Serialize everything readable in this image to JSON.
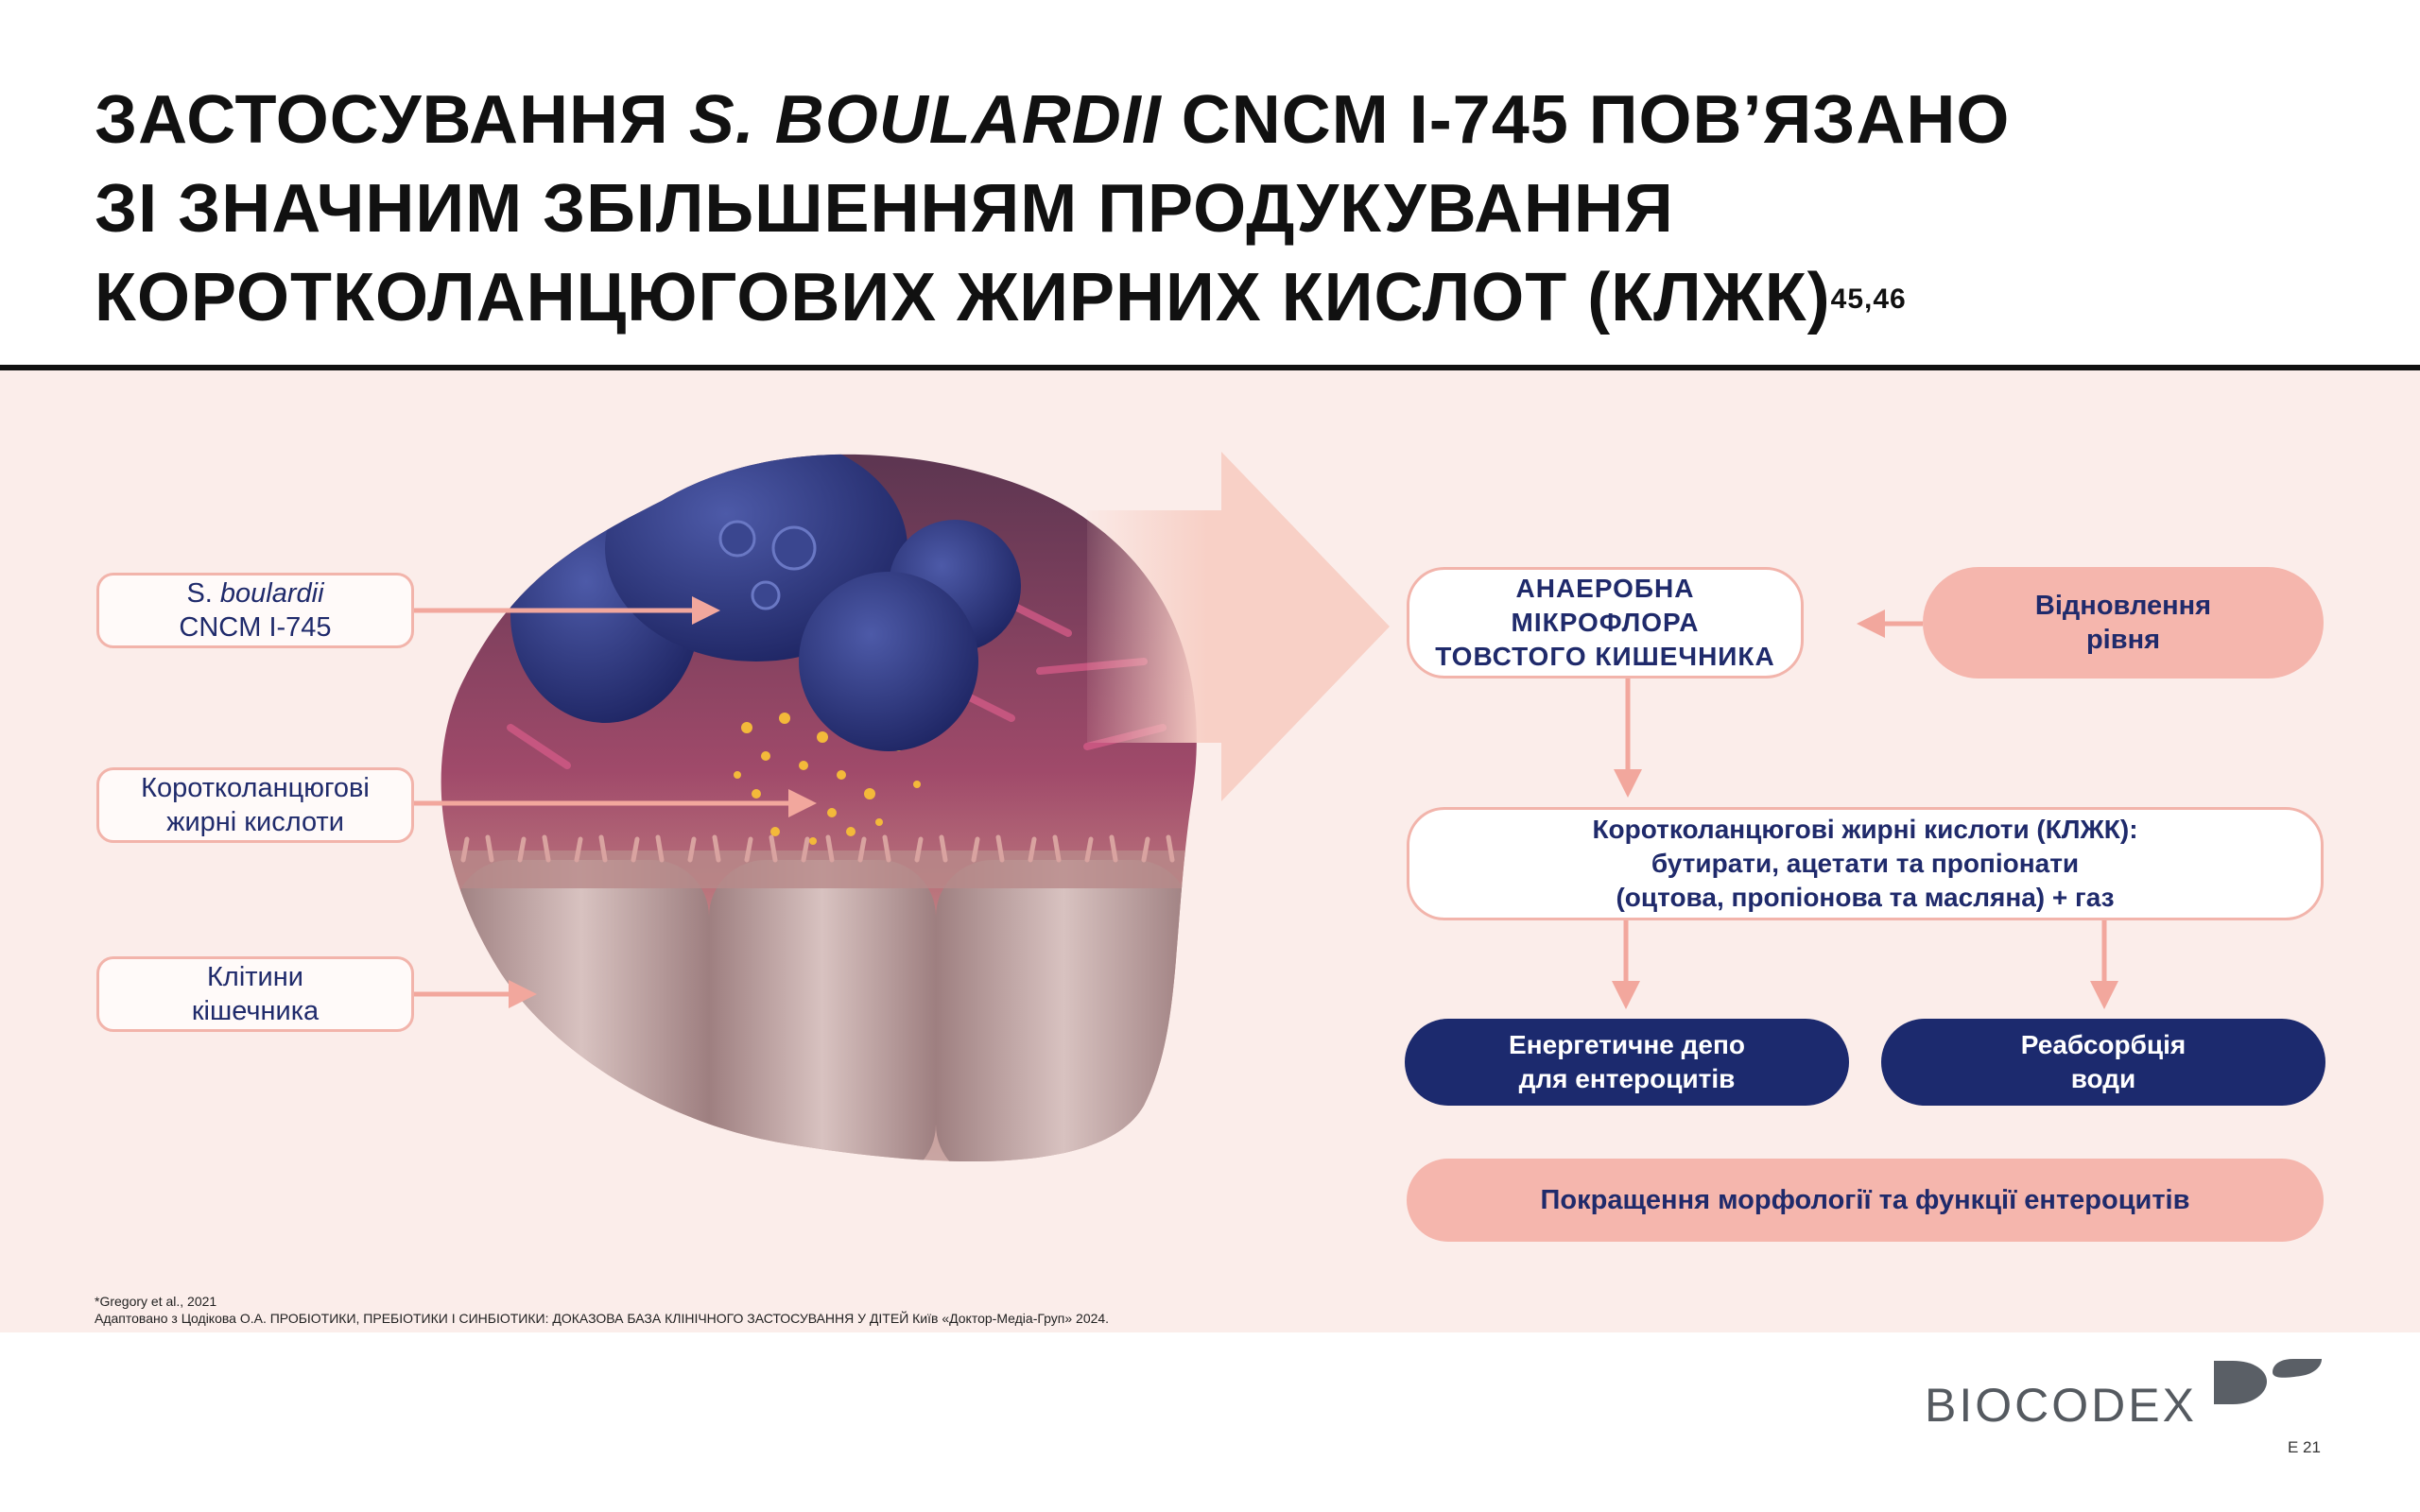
{
  "title": {
    "line1_pre": "ЗАСТОСУВАННЯ ",
    "line1_italic": "S. BOULARDII",
    "line1_post": " CNCM I-745 ПОВ’ЯЗАНО",
    "line2": "ЗІ ЗНАЧНИМ ЗБІЛЬШЕННЯМ ПРОДУКУВАННЯ",
    "line3": "КОРОТКОЛАНЦЮГОВИХ ЖИРНИХ КИСЛОТ (КЛЖК)",
    "refs": "45,46"
  },
  "labels": {
    "sb_prefix": "S. ",
    "sb_italic": "boulardii",
    "sb_line2": "CNCM I-745",
    "scfa_line1": "Коротколанцюгові",
    "scfa_line2": "жирні кислоти",
    "cells_line1": "Клітини",
    "cells_line2": "кішечника"
  },
  "flow": {
    "anaerobic_line1": "АНАЕРОБНА",
    "anaerobic_line2": "МІКРОФЛОРА",
    "anaerobic_line3": "ТОВСТОГО КИШЕЧНИКА",
    "restore_line1": "Відновлення",
    "restore_line2": "рівня",
    "scfa_line1": "Коротколанцюгові жирні кислоти (КЛЖК):",
    "scfa_line2": "бутирати, ацетати та пропіонати",
    "scfa_line3": "(оцтова, пропіонова та масляна) + газ",
    "energy_line1": "Енергетичне депо",
    "energy_line2": "для ентероцитів",
    "water_line1": "Реабсорбція",
    "water_line2": "води",
    "improve": "Покращення морфології та функції ентероцитів"
  },
  "footnotes": {
    "line1": "*Gregory et al., 2021",
    "line2": "Адаптовано з Цодікова О.А. ПРОБІОТИКИ, ПРЕБІОТИКИ І СИНБІОТИКИ: ДОКАЗОВА БАЗА КЛІНІЧНОГО ЗАСТОСУВАННЯ У ДІТЕЙ Київ «Доктор-Медіа-Груп» 2024."
  },
  "brand": {
    "name": "BIOCODEX"
  },
  "page": "E 21",
  "colors": {
    "navy": "#1c2a6e",
    "pink": "#f5b6ad",
    "outline": "#f2b4ab",
    "band": "#fbedea"
  }
}
